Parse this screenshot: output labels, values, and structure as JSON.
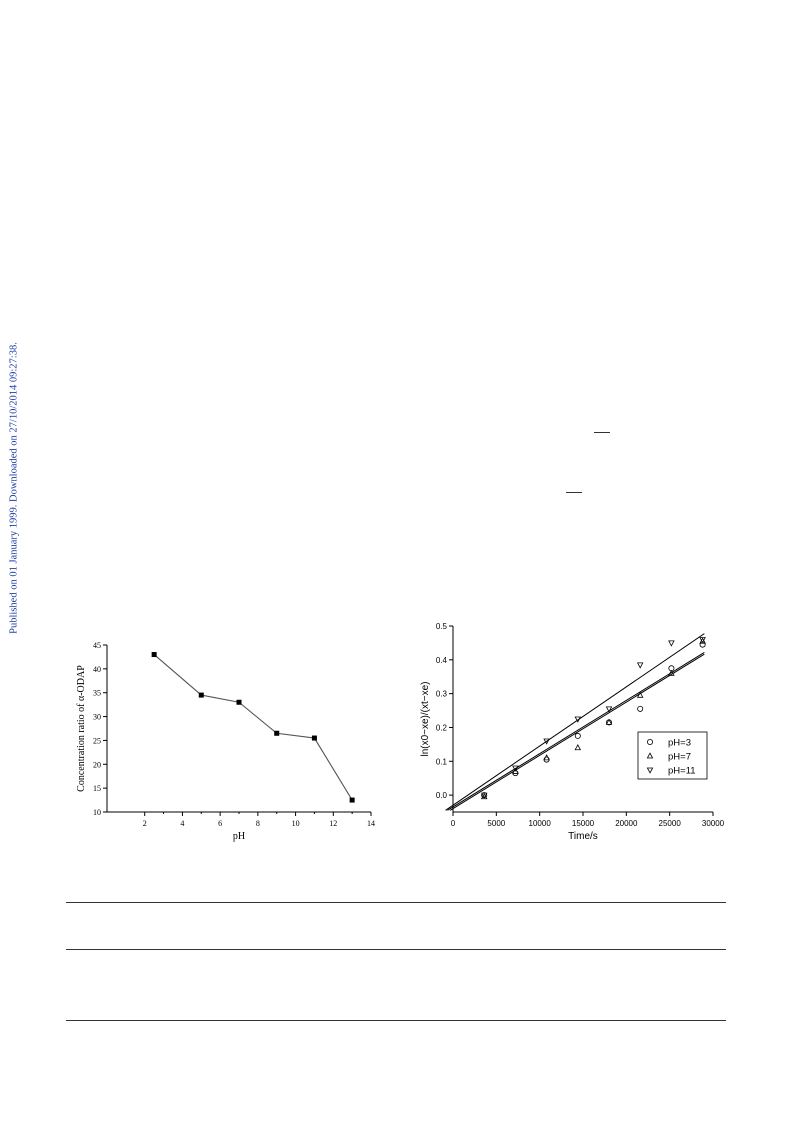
{
  "side_note": "Published on 01 January 1999. Downloaded on 27/10/2014 09:27:38.",
  "chart_data": [
    {
      "type": "line",
      "x": [
        2.5,
        5,
        7,
        9,
        11,
        13
      ],
      "series": [
        {
          "values": [
            43,
            34.5,
            33,
            26.5,
            25.5,
            12.5
          ],
          "color": "#555555",
          "marker": "square"
        }
      ],
      "xlabel": "pH",
      "ylabel": "Concentration ratio of α-ODAP",
      "xlim": [
        0,
        14
      ],
      "ylim": [
        10,
        45
      ],
      "xticks": [
        2,
        4,
        6,
        8,
        10,
        12,
        14
      ],
      "yticks": [
        10,
        15,
        20,
        25,
        30,
        35,
        40,
        45
      ],
      "grid": false
    },
    {
      "type": "scatter",
      "xlabel": "Time/s",
      "ylabel": "ln(x0−xe)/(xt−xe)",
      "xlim": [
        0,
        30000
      ],
      "ylim": [
        -0.05,
        0.5
      ],
      "xticks": [
        0,
        5000,
        10000,
        15000,
        20000,
        25000,
        30000
      ],
      "yticks": [
        0.0,
        0.1,
        0.2,
        0.3,
        0.4,
        0.5
      ],
      "grid": false,
      "legend_position": "bottom-right",
      "series": [
        {
          "name": "pH=3",
          "marker": "circle",
          "x": [
            3600,
            7200,
            10800,
            14400,
            18000,
            21600,
            25200,
            28800
          ],
          "y": [
            0.0,
            0.065,
            0.105,
            0.175,
            0.215,
            0.255,
            0.375,
            0.445
          ],
          "fit": {
            "slope": 1.575e-05,
            "intercept": -0.04
          }
        },
        {
          "name": "pH=7",
          "marker": "triangle-up",
          "x": [
            3600,
            7200,
            10800,
            14400,
            18000,
            21600,
            25200,
            28800
          ],
          "y": [
            -0.005,
            0.07,
            0.11,
            0.14,
            0.215,
            0.295,
            0.36,
            0.455
          ],
          "fit": {
            "slope": 1.575e-05,
            "intercept": -0.035
          }
        },
        {
          "name": "pH=11",
          "marker": "triangle-down",
          "x": [
            3600,
            7200,
            10800,
            14400,
            18000,
            21600,
            25200,
            28800
          ],
          "y": [
            0.0,
            0.08,
            0.16,
            0.225,
            0.255,
            0.385,
            0.45,
            0.46
          ],
          "fit": {
            "slope": 1.75e-05,
            "intercept": -0.03
          }
        }
      ]
    }
  ]
}
